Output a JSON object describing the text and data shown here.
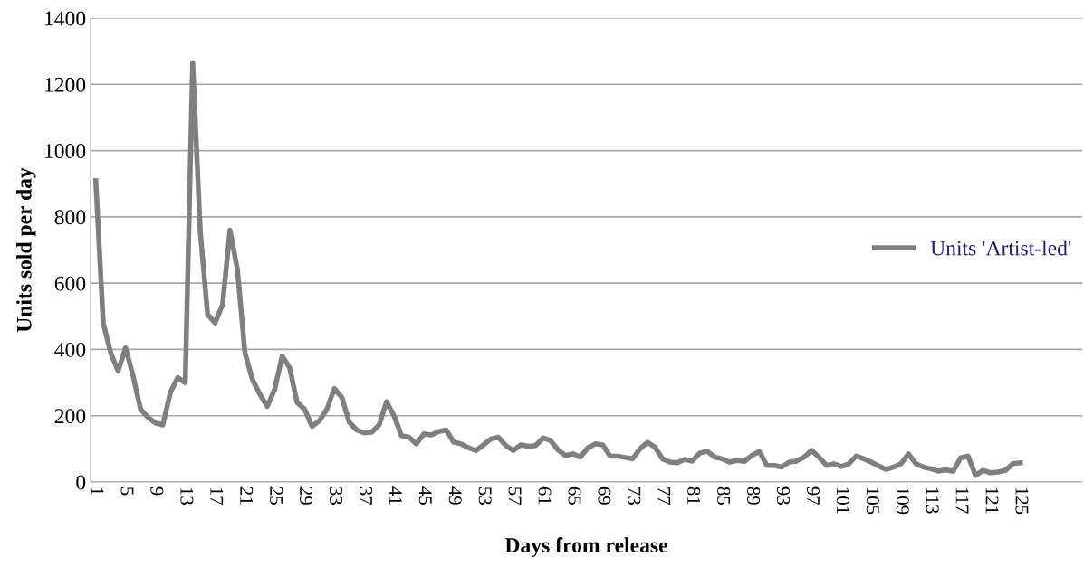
{
  "chart_data": {
    "type": "line",
    "xlabel": "Days from release",
    "ylabel": "Units sold per day",
    "categories": [
      "1",
      null,
      null,
      null,
      "5",
      null,
      null,
      null,
      "9",
      null,
      null,
      null,
      "13",
      null,
      null,
      null,
      "17",
      null,
      null,
      null,
      "21",
      null,
      null,
      null,
      "25",
      null,
      null,
      null,
      "29",
      null,
      null,
      null,
      "33",
      null,
      null,
      null,
      "37",
      null,
      null,
      null,
      "41",
      null,
      null,
      null,
      "45",
      null,
      null,
      null,
      "49",
      null,
      null,
      null,
      "53",
      null,
      null,
      null,
      "57",
      null,
      null,
      null,
      "61",
      null,
      null,
      null,
      "65",
      null,
      null,
      null,
      "69",
      null,
      null,
      null,
      "73",
      null,
      null,
      null,
      "77",
      null,
      null,
      null,
      "81",
      null,
      null,
      null,
      "85",
      null,
      null,
      null,
      "89",
      null,
      null,
      null,
      "93",
      null,
      null,
      null,
      "97",
      null,
      null,
      null,
      "101",
      null,
      null,
      null,
      "105",
      null,
      null,
      null,
      "109",
      null,
      null,
      null,
      "113",
      null,
      null,
      null,
      "117",
      null,
      null,
      null,
      "121",
      null,
      null,
      null,
      "125"
    ],
    "series": [
      {
        "name": "Units 'Artist-led'",
        "color": "#7f7f7f",
        "values": [
          910,
          480,
          390,
          335,
          405,
          320,
          220,
          195,
          178,
          172,
          270,
          315,
          300,
          1265,
          760,
          505,
          480,
          535,
          760,
          640,
          390,
          310,
          265,
          228,
          280,
          380,
          345,
          240,
          220,
          168,
          185,
          220,
          282,
          255,
          180,
          157,
          148,
          150,
          172,
          242,
          200,
          140,
          135,
          115,
          145,
          142,
          152,
          157,
          120,
          115,
          103,
          95,
          112,
          130,
          135,
          110,
          95,
          112,
          108,
          110,
          133,
          125,
          97,
          80,
          85,
          75,
          103,
          115,
          112,
          78,
          78,
          74,
          70,
          100,
          120,
          105,
          70,
          60,
          58,
          68,
          63,
          87,
          93,
          75,
          70,
          60,
          65,
          62,
          80,
          92,
          50,
          50,
          45,
          60,
          63,
          75,
          95,
          75,
          50,
          55,
          47,
          55,
          78,
          70,
          60,
          48,
          38,
          45,
          55,
          85,
          55,
          45,
          40,
          33,
          37,
          32,
          73,
          78,
          20,
          35,
          28,
          30,
          35,
          55,
          58
        ]
      }
    ],
    "ylim": [
      0,
      1400
    ],
    "yticks": [
      0,
      200,
      400,
      600,
      800,
      1000,
      1200,
      1400
    ],
    "grid": "y",
    "legend": "right",
    "marker": "none",
    "line_style": "solid"
  }
}
